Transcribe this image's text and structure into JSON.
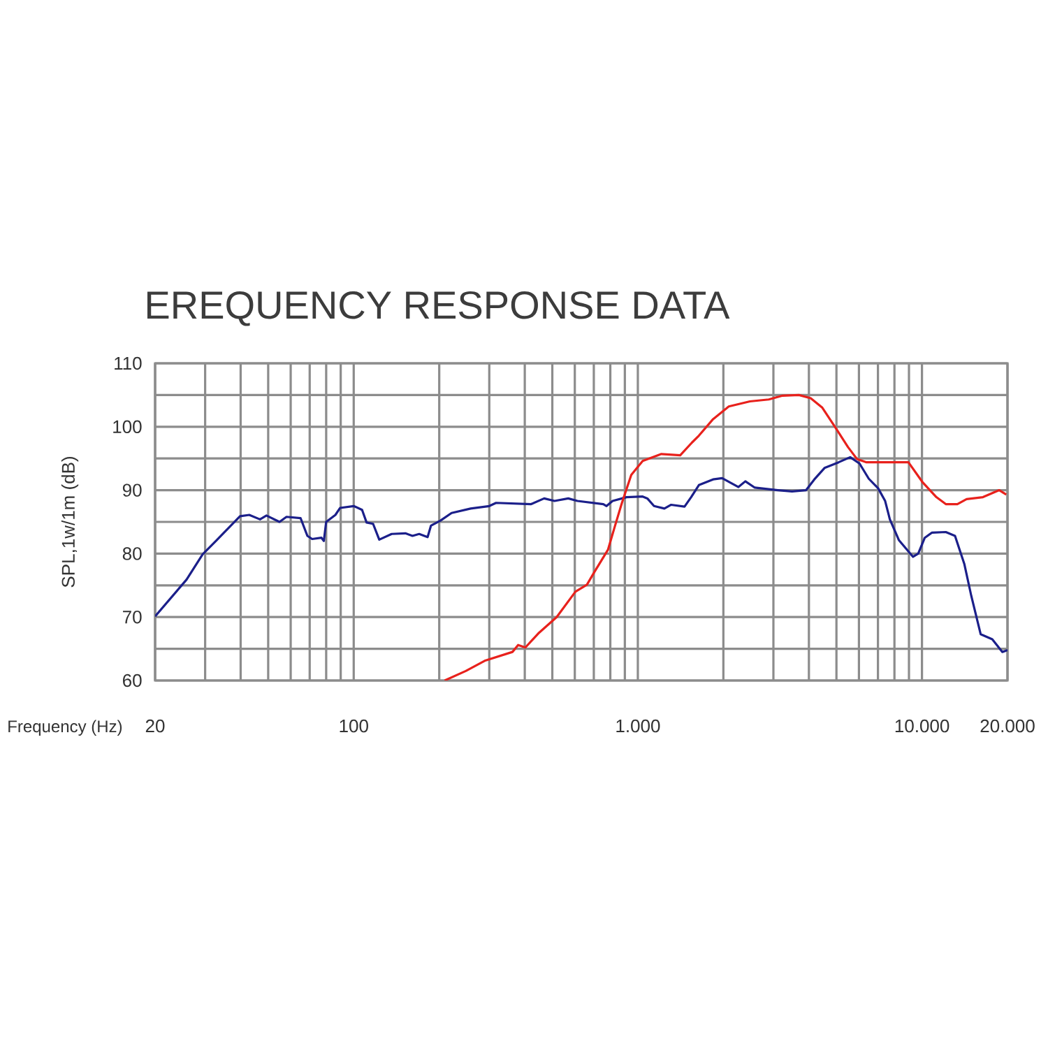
{
  "chart_data": {
    "type": "line",
    "title": "EREQUENCY RESPONSE DATA",
    "xlabel": "Frequency (Hz)",
    "ylabel": "SPL,1w/1m (dB)",
    "log": "x",
    "grid": true,
    "line_style": "solid",
    "xlim": [
      20,
      20000
    ],
    "ylim": [
      60,
      110
    ],
    "xticks": [
      20,
      {
        "value": 30,
        "label": null
      },
      {
        "value": 40,
        "label": null
      },
      {
        "value": 50,
        "label": null
      },
      {
        "value": 60,
        "label": null
      },
      {
        "value": 70,
        "label": null
      },
      {
        "value": 80,
        "label": null
      },
      {
        "value": 90,
        "label": null
      },
      100,
      {
        "value": 200,
        "label": null
      },
      {
        "value": 300,
        "label": null
      },
      {
        "value": 400,
        "label": null
      },
      {
        "value": 500,
        "label": null
      },
      {
        "value": 600,
        "label": null
      },
      {
        "value": 700,
        "label": null
      },
      {
        "value": 800,
        "label": null
      },
      {
        "value": 900,
        "label": null
      },
      {
        "value": 1000,
        "label": "1.000"
      },
      {
        "value": 2000,
        "label": null
      },
      {
        "value": 3000,
        "label": null
      },
      {
        "value": 4000,
        "label": null
      },
      {
        "value": 5000,
        "label": null
      },
      {
        "value": 6000,
        "label": null
      },
      {
        "value": 7000,
        "label": null
      },
      {
        "value": 8000,
        "label": null
      },
      {
        "value": 9000,
        "label": null
      },
      {
        "value": 10000,
        "label": "10.000"
      },
      {
        "value": 20000,
        "label": "20.000"
      }
    ],
    "yticks": [
      60,
      {
        "value": 65,
        "label": null
      },
      70,
      {
        "value": 75,
        "label": null
      },
      80,
      {
        "value": 85,
        "label": null
      },
      90,
      {
        "value": 95,
        "label": null
      },
      100,
      {
        "value": 105,
        "label": null
      },
      110
    ],
    "series": [
      {
        "color": "#1b1f8a",
        "x": [
          20,
          25.8,
          29.4,
          32.9,
          39.8,
          42.9,
          46.8,
          49.3,
          54.8,
          58,
          65,
          68.7,
          71.4,
          77,
          78.5,
          80,
          86.2,
          89.5,
          100,
          107,
          111,
          117,
          123,
          136,
          152,
          161,
          170,
          182,
          187,
          202,
          221,
          258,
          300,
          317,
          421,
          468,
          509,
          569,
          613,
          756,
          776,
          815,
          912,
          1040,
          1080,
          1140,
          1240,
          1310,
          1460,
          1540,
          1640,
          1840,
          1980,
          2260,
          2390,
          2580,
          3110,
          3490,
          3910,
          4180,
          4540,
          5090,
          5590,
          6030,
          6500,
          7010,
          7420,
          7710,
          8300,
          9300,
          9700,
          10230,
          10830,
          12130,
          13070,
          14090,
          14920,
          16090,
          17680,
          19190,
          20000
        ],
        "values": [
          70.1,
          75.9,
          79.9,
          82.1,
          85.9,
          86.1,
          85.4,
          86.0,
          85.0,
          85.8,
          85.6,
          82.8,
          82.3,
          82.5,
          82.0,
          85.0,
          86.1,
          87.2,
          87.5,
          86.9,
          84.9,
          84.7,
          82.2,
          83.1,
          83.2,
          82.8,
          83.1,
          82.6,
          84.4,
          85.2,
          86.4,
          87.1,
          87.5,
          88.0,
          87.8,
          88.7,
          88.3,
          88.7,
          88.3,
          87.8,
          87.5,
          88.3,
          88.9,
          89.0,
          88.7,
          87.5,
          87.1,
          87.7,
          87.4,
          88.9,
          90.8,
          91.7,
          91.9,
          90.5,
          91.4,
          90.4,
          90.0,
          89.8,
          90.0,
          91.7,
          93.5,
          94.4,
          95.2,
          94.2,
          91.8,
          90.3,
          88.3,
          85.4,
          82.1,
          79.5,
          80.0,
          82.5,
          83.3,
          83.4,
          82.8,
          78.4,
          73.3,
          67.3,
          66.5,
          64.5,
          64.8
        ]
      },
      {
        "color": "#e8211c",
        "x": [
          209,
          248,
          289,
          362,
          379,
          402,
          446,
          518,
          603,
          662,
          701,
          785,
          830,
          879,
          948,
          1040,
          1210,
          1410,
          1550,
          1640,
          1840,
          2090,
          2480,
          2890,
          3230,
          3690,
          4060,
          4460,
          4990,
          5490,
          5910,
          6380,
          8000,
          8960,
          10030,
          11240,
          12130,
          13320,
          14360,
          16390,
          18710,
          19800
        ],
        "values": [
          60.0,
          61.5,
          63.1,
          64.5,
          65.6,
          65.2,
          67.4,
          70.0,
          74.0,
          75.1,
          77.0,
          80.6,
          84.3,
          88.0,
          92.4,
          94.6,
          95.7,
          95.5,
          97.5,
          98.6,
          101.2,
          103.2,
          104.0,
          104.3,
          104.9,
          105.0,
          104.5,
          103.0,
          99.7,
          96.8,
          94.9,
          94.4,
          94.4,
          94.4,
          91.3,
          88.9,
          87.8,
          87.8,
          88.6,
          88.9,
          90.0,
          89.3
        ]
      }
    ]
  }
}
